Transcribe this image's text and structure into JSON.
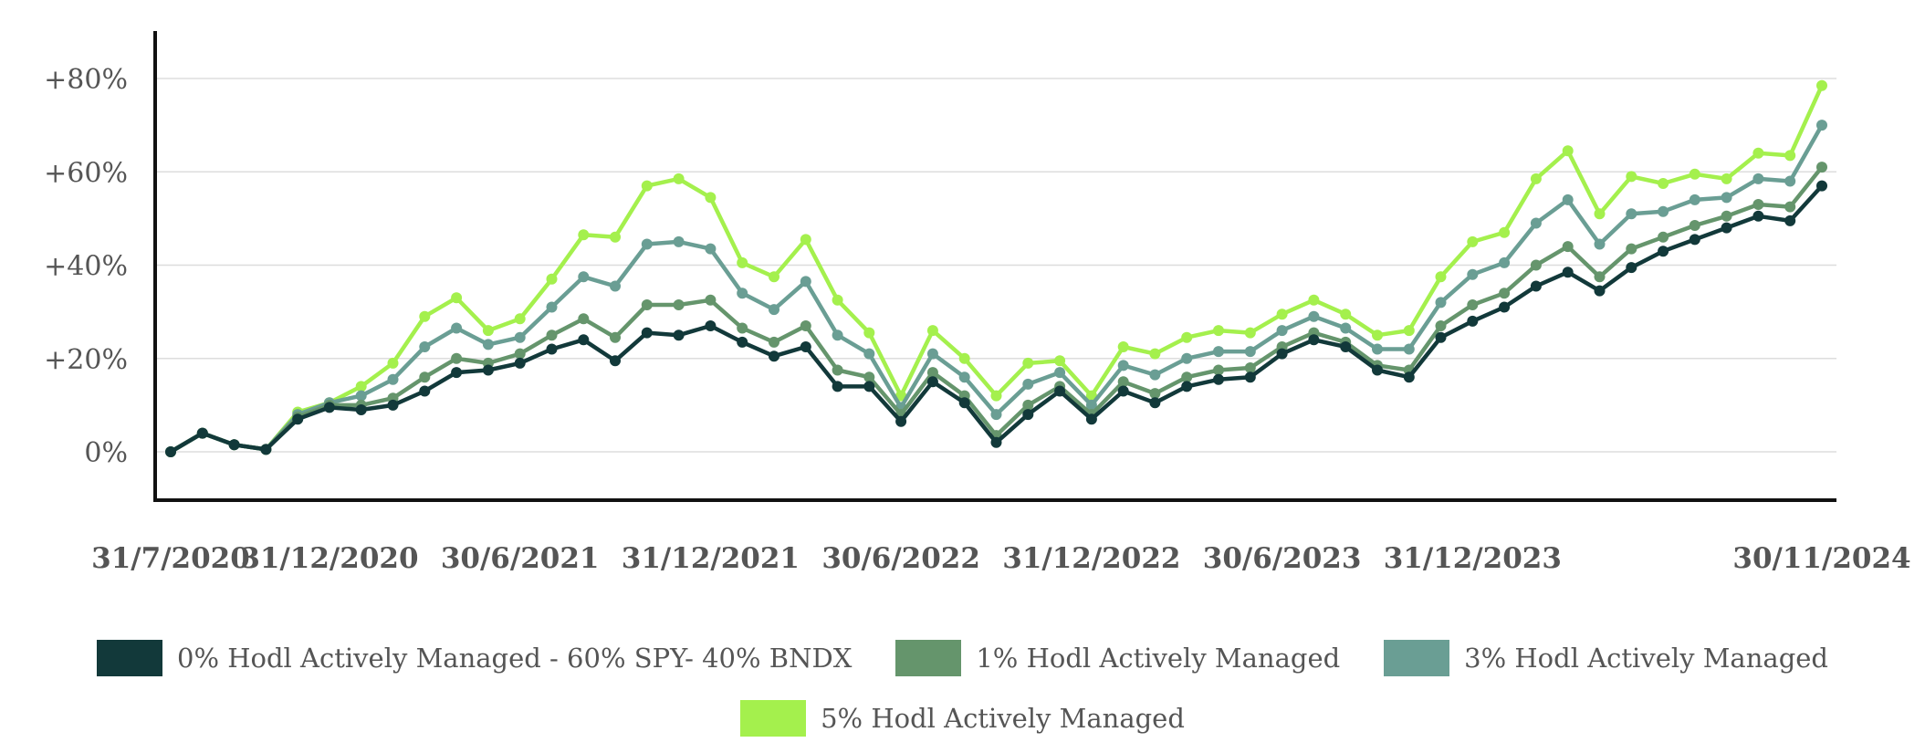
{
  "chart_data": {
    "type": "line",
    "title": "",
    "xlabel": "",
    "ylabel": "",
    "ylim": [
      -10,
      90
    ],
    "y_ticks": [
      {
        "value": 0,
        "label": "0%"
      },
      {
        "value": 20,
        "label": "+20%"
      },
      {
        "value": 40,
        "label": "+40%"
      },
      {
        "value": 60,
        "label": "+60%"
      },
      {
        "value": 80,
        "label": "+80%"
      }
    ],
    "x_ticks": [
      {
        "index": 0,
        "label": "31/7/2020"
      },
      {
        "index": 5,
        "label": "31/12/2020"
      },
      {
        "index": 11,
        "label": "30/6/2021"
      },
      {
        "index": 17,
        "label": "31/12/2021"
      },
      {
        "index": 23,
        "label": "30/6/2022"
      },
      {
        "index": 29,
        "label": "31/12/2022"
      },
      {
        "index": 35,
        "label": "30/6/2023"
      },
      {
        "index": 41,
        "label": "31/12/2023"
      },
      {
        "index": 52,
        "label": "30/11/2024"
      }
    ],
    "grid": true,
    "legend_position": "bottom",
    "series": [
      {
        "name": "0% Hodl Actively Managed - 60% SPY- 40% BNDX",
        "color": "#12393a",
        "values": [
          0,
          4,
          1.5,
          0.5,
          7,
          9.5,
          9,
          10,
          13,
          17,
          17.5,
          19,
          22,
          24,
          19.5,
          25.5,
          25,
          27,
          23.5,
          20.5,
          22.5,
          14,
          14,
          6.5,
          15,
          10.5,
          2,
          8,
          13,
          7,
          13,
          10.5,
          14,
          15.5,
          16,
          21,
          24,
          22.5,
          17.5,
          16,
          24.5,
          28,
          31,
          35.5,
          38.5,
          34.5,
          39.5,
          43,
          45.5,
          48,
          50.5,
          49.5,
          57
        ]
      },
      {
        "name": "1% Hodl Actively Managed",
        "color": "#65956c",
        "values": [
          0,
          4,
          1.5,
          0.5,
          7.5,
          10,
          10,
          11.5,
          16,
          20,
          19,
          21,
          25,
          28.5,
          24.5,
          31.5,
          31.5,
          32.5,
          26.5,
          23.5,
          27,
          17.5,
          16,
          8,
          17,
          12,
          3.5,
          10,
          14,
          8,
          15,
          12.5,
          16,
          17.5,
          18,
          22.5,
          25.5,
          23.5,
          18.5,
          17.5,
          27,
          31.5,
          34,
          40,
          44,
          37.5,
          43.5,
          46,
          48.5,
          50.5,
          53,
          52.5,
          61
        ]
      },
      {
        "name": "3% Hodl Actively Managed",
        "color": "#6a9e94",
        "values": [
          0,
          4,
          1.5,
          0.5,
          8,
          10.5,
          12,
          15.5,
          22.5,
          26.5,
          23,
          24.5,
          31,
          37.5,
          35.5,
          44.5,
          45,
          43.5,
          34,
          30.5,
          36.5,
          25,
          21,
          9.5,
          21,
          16,
          8,
          14.5,
          17,
          10,
          18.5,
          16.5,
          20,
          21.5,
          21.5,
          26,
          29,
          26.5,
          22,
          22,
          32,
          38,
          40.5,
          49,
          54,
          44.5,
          51,
          51.5,
          54,
          54.5,
          58.5,
          58,
          70
        ]
      },
      {
        "name": "5% Hodl Actively Managed",
        "color": "#a4f04d",
        "values": [
          0,
          4,
          1.5,
          0.5,
          8.5,
          10.5,
          14,
          19,
          29,
          33,
          26,
          28.5,
          37,
          46.5,
          46,
          57,
          58.5,
          54.5,
          40.5,
          37.5,
          45.5,
          32.5,
          25.5,
          12,
          26,
          20,
          12,
          19,
          19.5,
          12,
          22.5,
          21,
          24.5,
          26,
          25.5,
          29.5,
          32.5,
          29.5,
          25,
          26,
          37.5,
          45,
          47,
          58.5,
          64.5,
          51,
          59,
          57.5,
          59.5,
          58.5,
          64,
          63.5,
          78.5
        ]
      }
    ]
  }
}
